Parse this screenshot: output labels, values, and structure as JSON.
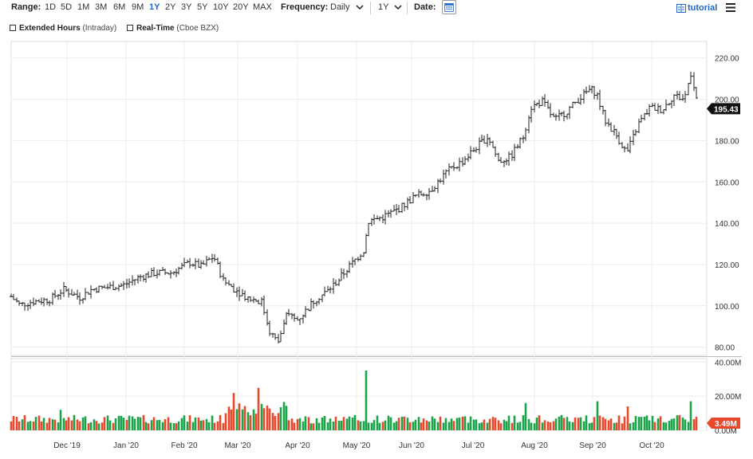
{
  "toolbar": {
    "range_label": "Range:",
    "ranges": [
      "1D",
      "5D",
      "1M",
      "3M",
      "6M",
      "9M",
      "1Y",
      "2Y",
      "3Y",
      "5Y",
      "10Y",
      "20Y",
      "MAX"
    ],
    "active_range": "1Y",
    "frequency_label": "Frequency:",
    "frequency_value": "Daily",
    "period_value": "1Y",
    "date_label": "Date:",
    "tutorial_label": "tutorial"
  },
  "options": {
    "extended_hours": "Extended Hours",
    "extended_hours_sub": "(Intraday)",
    "real_time": "Real-Time",
    "real_time_sub": "(Cboe BZX)"
  },
  "colors": {
    "up": "#1aa34a",
    "down": "#e8492c",
    "accent": "#1f66c7",
    "last_price_bg": "#111111",
    "last_volume_bg": "#e8492c"
  },
  "chart_data": {
    "type": "ohlc",
    "price_axis": {
      "ticks": [
        80,
        100,
        120,
        140,
        160,
        180,
        200,
        220
      ],
      "labels": [
        "80.00",
        "100.00",
        "120.00",
        "140.00",
        "160.00",
        "180.00",
        "200.00",
        "220.00"
      ],
      "range": [
        76,
        228
      ]
    },
    "volume_axis": {
      "ticks": [
        0,
        20,
        40
      ],
      "labels": [
        "0.00M",
        "20.00M",
        "40.00M"
      ],
      "range": [
        0,
        42
      ]
    },
    "x_labels": [
      "Dec '19",
      "Jan '20",
      "Feb '20",
      "Mar '20",
      "Apr '20",
      "May '20",
      "Jun '20",
      "Jul '20",
      "Aug '20",
      "Sep '20",
      "Oct '20"
    ],
    "last_price": "195.43",
    "last_volume": "3.49M",
    "grid": true,
    "anchors": [
      {
        "x": 14,
        "p": 104.5
      },
      {
        "x": 25,
        "p": 100.5
      },
      {
        "x": 40,
        "p": 102
      },
      {
        "x": 62,
        "p": 103
      },
      {
        "x": 80,
        "p": 108
      },
      {
        "x": 100,
        "p": 104
      },
      {
        "x": 115,
        "p": 108
      },
      {
        "x": 135,
        "p": 109
      },
      {
        "x": 155,
        "p": 110
      },
      {
        "x": 175,
        "p": 114
      },
      {
        "x": 195,
        "p": 116
      },
      {
        "x": 215,
        "p": 116
      },
      {
        "x": 238,
        "p": 121
      },
      {
        "x": 252,
        "p": 119
      },
      {
        "x": 268,
        "p": 124
      },
      {
        "x": 280,
        "p": 112
      },
      {
        "x": 295,
        "p": 108
      },
      {
        "x": 310,
        "p": 104
      },
      {
        "x": 328,
        "p": 102
      },
      {
        "x": 338,
        "p": 88
      },
      {
        "x": 348,
        "p": 82
      },
      {
        "x": 360,
        "p": 96
      },
      {
        "x": 372,
        "p": 93
      },
      {
        "x": 382,
        "p": 97
      },
      {
        "x": 395,
        "p": 103
      },
      {
        "x": 410,
        "p": 107
      },
      {
        "x": 425,
        "p": 113
      },
      {
        "x": 440,
        "p": 120
      },
      {
        "x": 456,
        "p": 127
      },
      {
        "x": 462,
        "p": 141
      },
      {
        "x": 480,
        "p": 143
      },
      {
        "x": 500,
        "p": 147
      },
      {
        "x": 520,
        "p": 153
      },
      {
        "x": 540,
        "p": 156
      },
      {
        "x": 560,
        "p": 165
      },
      {
        "x": 580,
        "p": 170
      },
      {
        "x": 600,
        "p": 178
      },
      {
        "x": 612,
        "p": 182
      },
      {
        "x": 625,
        "p": 170
      },
      {
        "x": 640,
        "p": 172
      },
      {
        "x": 656,
        "p": 182
      },
      {
        "x": 665,
        "p": 196
      },
      {
        "x": 680,
        "p": 199
      },
      {
        "x": 695,
        "p": 190
      },
      {
        "x": 710,
        "p": 194
      },
      {
        "x": 725,
        "p": 200
      },
      {
        "x": 740,
        "p": 205
      },
      {
        "x": 748,
        "p": 203
      },
      {
        "x": 758,
        "p": 190
      },
      {
        "x": 772,
        "p": 183
      },
      {
        "x": 786,
        "p": 174
      },
      {
        "x": 800,
        "p": 188
      },
      {
        "x": 815,
        "p": 196
      },
      {
        "x": 830,
        "p": 195
      },
      {
        "x": 845,
        "p": 202
      },
      {
        "x": 858,
        "p": 200
      },
      {
        "x": 866,
        "p": 213
      },
      {
        "x": 876,
        "p": 195.43
      }
    ],
    "volume_spikes": [
      {
        "x": 460,
        "v": 35
      },
      {
        "x": 325,
        "v": 20
      },
      {
        "x": 750,
        "v": 17
      },
      {
        "x": 294,
        "v": 17
      },
      {
        "x": 660,
        "v": 16
      },
      {
        "x": 866,
        "v": 17
      },
      {
        "x": 787,
        "v": 14
      },
      {
        "x": 75,
        "v": 12
      }
    ]
  }
}
